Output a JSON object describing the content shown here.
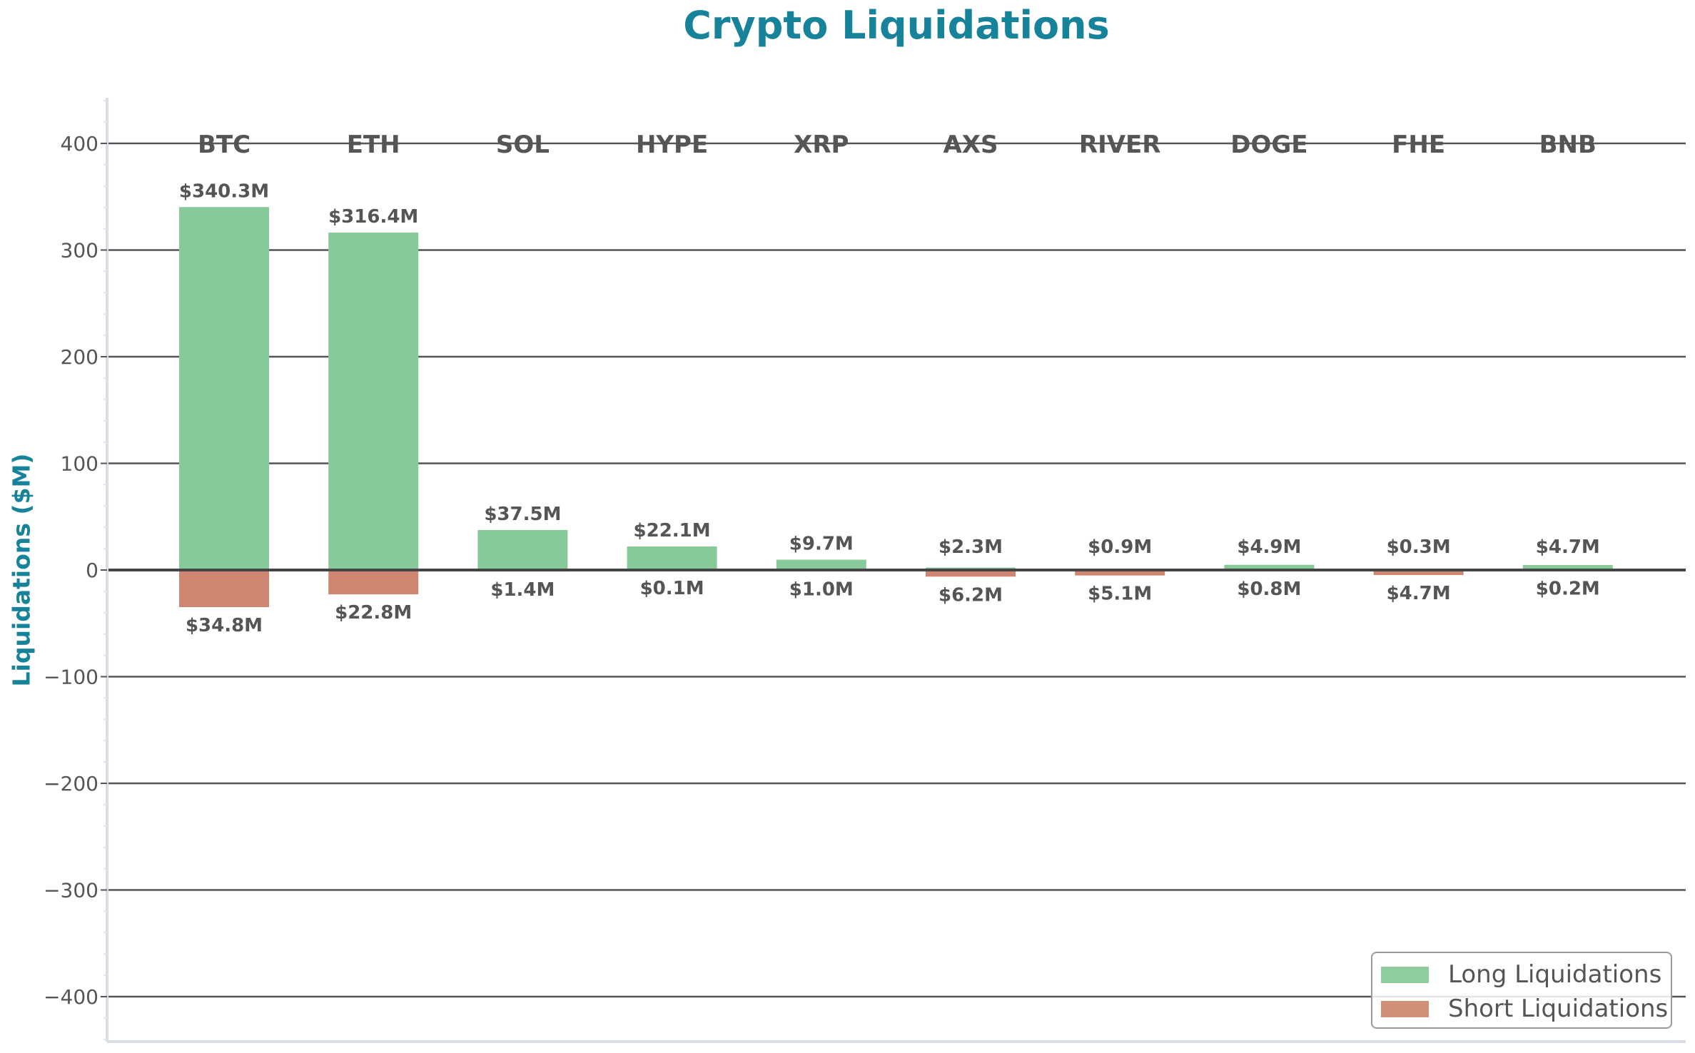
{
  "chart_data": {
    "type": "bar",
    "title": "Crypto Liquidations",
    "xlabel": "",
    "ylabel": "Liquidations ($M)",
    "categories": [
      "BTC",
      "ETH",
      "SOL",
      "HYPE",
      "XRP",
      "AXS",
      "RIVER",
      "DOGE",
      "FHE",
      "BNB"
    ],
    "series": [
      {
        "name": "Long Liquidations",
        "color": "#88c999",
        "values": [
          340.3,
          316.4,
          37.5,
          22.1,
          9.7,
          2.3,
          0.9,
          4.9,
          0.3,
          4.7
        ]
      },
      {
        "name": "Short Liquidations",
        "color": "#cf8670",
        "values": [
          -34.8,
          -22.8,
          -1.4,
          -0.1,
          -1.0,
          -6.2,
          -5.1,
          -0.8,
          -4.7,
          -0.2
        ]
      }
    ],
    "long_labels": [
      "$340.3M",
      "$316.4M",
      "$37.5M",
      "$22.1M",
      "$9.7M",
      "$2.3M",
      "$0.9M",
      "$4.9M",
      "$0.3M",
      "$4.7M"
    ],
    "short_labels": [
      "$34.8M",
      "$22.8M",
      "$1.4M",
      "$0.1M",
      "$1.0M",
      "$6.2M",
      "$5.1M",
      "$0.8M",
      "$4.7M",
      "$0.2M"
    ],
    "yticks": [
      400,
      300,
      200,
      100,
      0,
      -100,
      -200,
      -300,
      -400
    ],
    "ytick_labels": [
      "400",
      "300",
      "200",
      "100",
      "0",
      "−100",
      "−200",
      "−300",
      "−400"
    ],
    "ylim": [
      -443,
      443
    ],
    "grid": true,
    "legend_position": "lower right",
    "category_labels_position": "top, inside axes at y=400"
  },
  "title": "Crypto Liquidations",
  "ylabel": "Liquidations ($M)",
  "legend": {
    "items": [
      {
        "label": "Long Liquidations",
        "color": "#8fcd9f"
      },
      {
        "label": "Short Liquidations",
        "color": "#d28f78"
      }
    ]
  },
  "colors": {
    "title": "#17839a",
    "text": "#555555",
    "grid": "#555555",
    "zero_line": "#444444",
    "spine": "#d8dde8"
  }
}
